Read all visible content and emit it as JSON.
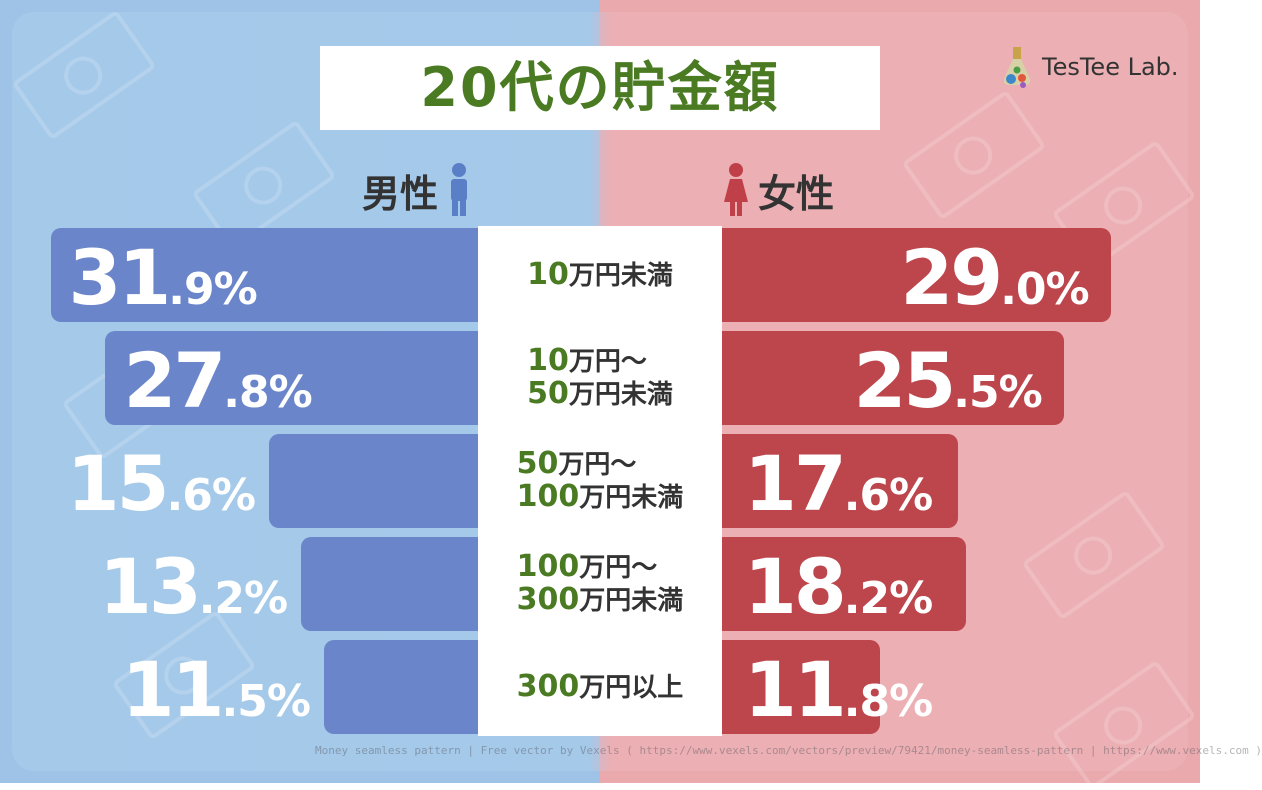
{
  "title": "20代の貯金額",
  "logo_text": "TesTee Lab.",
  "legend": {
    "male": "男性",
    "female": "女性"
  },
  "colors": {
    "male": "#6a85c9",
    "female": "#bd454c",
    "title": "#4a7a22",
    "category_number": "#4a7a22"
  },
  "credit": "Money seamless pattern | Free vector by Vexels ( https://www.vexels.com/vectors/preview/79421/money-seamless-pattern | https://www.vexels.com )",
  "chart_data": {
    "type": "bar",
    "orientation": "horizontal-butterfly",
    "title": "20代の貯金額",
    "categories": [
      "10万円未満",
      "10万円〜\n50万円未満",
      "50万円〜\n100万円未満",
      "100万円〜\n300万円未満",
      "300万円以上"
    ],
    "series": [
      {
        "name": "男性",
        "values": [
          31.9,
          27.8,
          15.6,
          13.2,
          11.5
        ],
        "labels": [
          "31.9%",
          "27.8%",
          "15.6%",
          "13.2%",
          "11.5%"
        ]
      },
      {
        "name": "女性",
        "values": [
          29.0,
          25.5,
          17.6,
          18.2,
          11.8
        ],
        "labels": [
          "29.0%",
          "25.5%",
          "17.6%",
          "18.2%",
          "11.8%"
        ]
      }
    ],
    "unit": "%"
  }
}
